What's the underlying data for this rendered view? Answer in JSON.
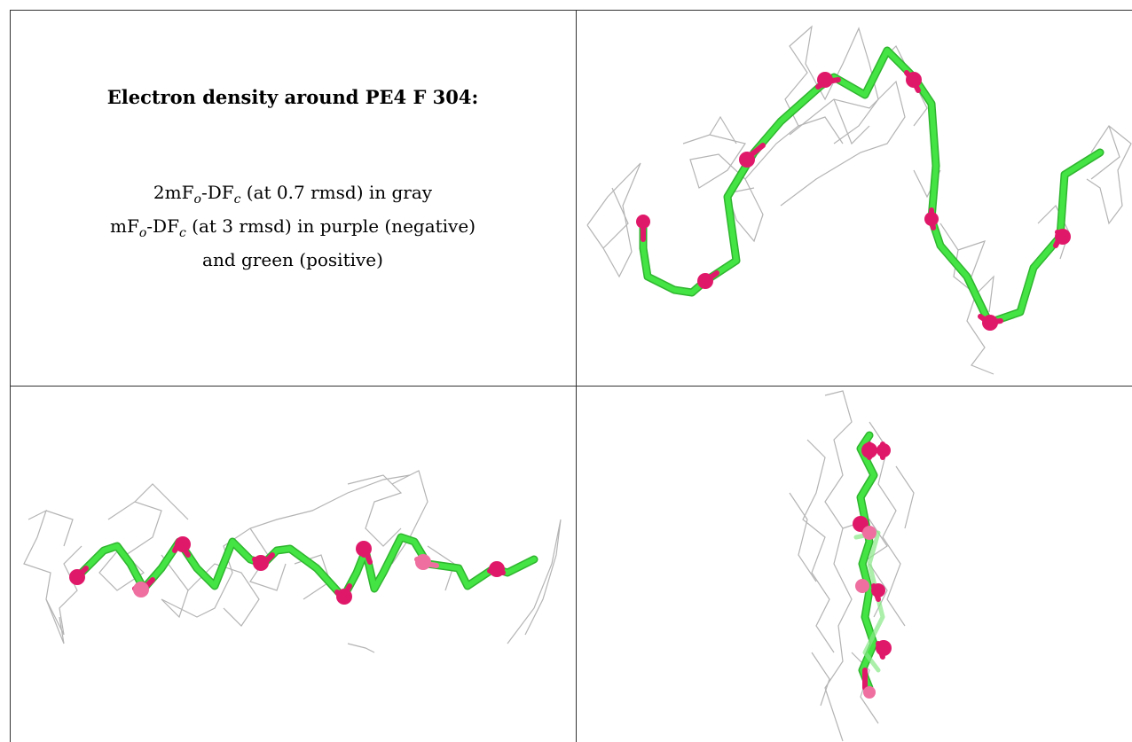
{
  "caption": {
    "title": "Electron density around PE4 F 304:",
    "line1": {
      "a": "2mF",
      "sub1": "o",
      "b": "-DF",
      "sub2": "c",
      "c": " (at 0.7 rmsd) in gray"
    },
    "line2": {
      "a": "mF",
      "sub1": "o",
      "b": "-DF",
      "sub2": "c",
      "c": " (at 3 rmsd) in purple (negative)"
    },
    "line3": "and green (positive)"
  },
  "colors": {
    "carbon_stick": "#44e444",
    "carbon_stick_dark": "#2fb52f",
    "oxygen_atom": "#e0186a",
    "oxygen_atom_light": "#ee6fa0",
    "density_mesh": "#b4b4b4",
    "grid_line": "#333333"
  },
  "views": [
    {
      "name": "view-top-right",
      "description": "side view"
    },
    {
      "name": "view-bottom-left",
      "description": "extended view"
    },
    {
      "name": "view-bottom-right",
      "description": "end-on view"
    }
  ]
}
